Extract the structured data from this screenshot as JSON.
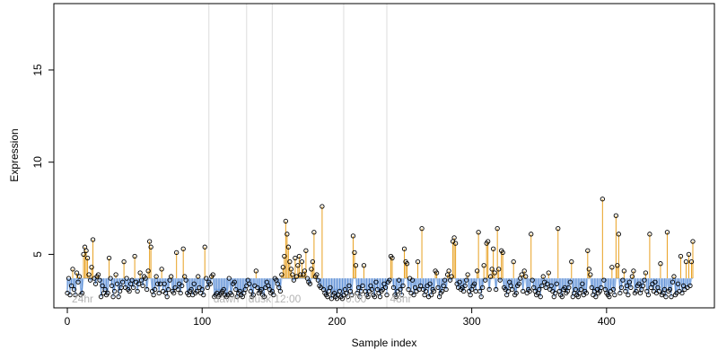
{
  "chart_data": {
    "type": "scatter",
    "xlabel": "Sample index",
    "ylabel": "Expression",
    "xlim": [
      -10,
      480
    ],
    "ylim": [
      2.1,
      18.6
    ],
    "x_ticks": [
      "0",
      "100",
      "200",
      "300",
      "400"
    ],
    "y_ticks": [
      "5",
      "10",
      "15"
    ],
    "baseline_level": 3.7,
    "dashed_level": 3.2,
    "floor_level": 2.6,
    "phase_lines": [
      105,
      133,
      152,
      205,
      237
    ],
    "phase_labels": [
      {
        "text": "24hr",
        "x": 2
      },
      {
        "text": "dawn",
        "x": 107
      },
      {
        "text": "dusk",
        "x": 133
      },
      {
        "text": "12:00",
        "x": 152
      },
      {
        "text": "0:00",
        "x": 205
      },
      {
        "text": "48hr",
        "x": 238
      }
    ],
    "colors": {
      "above_baseline": "#e8a020",
      "below_baseline": "#5b8ed6",
      "smooth_curve": "#a6c4ec",
      "points": "#000000",
      "phase_lines": "#dcdcdc",
      "phase_labels": "#b4b4b4"
    },
    "series": [
      {
        "values": [
          2.9,
          3.7,
          2.8,
          3.3,
          4.2,
          3.1,
          2.8,
          4.0,
          3.5,
          3.8,
          2.8,
          2.9,
          5.0,
          5.4,
          5.2,
          4.8,
          3.9,
          3.6,
          4.3,
          5.8,
          3.7,
          3.4,
          3.8,
          3.9,
          3.6,
          2.7,
          3.3,
          2.9,
          3.1,
          2.8,
          2.9,
          4.8,
          3.7,
          3.3,
          2.7,
          3.0,
          3.9,
          3.4,
          2.7,
          3.0,
          3.2,
          3.5,
          4.6,
          3.2,
          3.7,
          3.1,
          3.0,
          3.4,
          3.6,
          3.2,
          4.9,
          3.5,
          3.0,
          3.4,
          4.0,
          3.6,
          3.3,
          3.8,
          3.7,
          3.1,
          4.1,
          5.7,
          5.4,
          3.0,
          2.8,
          3.1,
          3.8,
          3.4,
          2.9,
          3.4,
          4.2,
          3.0,
          3.4,
          2.9,
          2.7,
          3.1,
          3.6,
          3.8,
          3.0,
          2.9,
          3.2,
          5.1,
          3.1,
          3.4,
          2.9,
          3.3,
          5.3,
          3.8,
          3.6,
          2.9,
          2.8,
          3.0,
          3.1,
          2.8,
          3.4,
          2.9,
          3.0,
          3.8,
          3.2,
          2.9,
          3.1,
          2.8,
          5.4,
          3.7,
          3.2,
          3.5,
          3.4,
          3.8,
          3.9,
          2.7,
          2.8,
          2.9,
          2.7,
          2.8,
          2.9,
          3.0,
          3.1,
          2.8,
          2.7,
          2.8,
          3.7,
          2.9,
          2.8,
          3.4,
          3.5,
          3.1,
          2.7,
          2.9,
          3.0,
          2.8,
          2.7,
          2.9,
          3.1,
          3.3,
          3.6,
          3.4,
          3.0,
          2.7,
          2.8,
          3.3,
          4.1,
          3.2,
          2.9,
          3.0,
          3.1,
          2.8,
          2.7,
          3.2,
          3.5,
          3.3,
          3.1,
          2.9,
          3.0,
          2.8,
          3.7,
          3.6,
          3.4,
          3.2,
          3.0,
          3.9,
          4.3,
          4.9,
          6.8,
          6.1,
          5.4,
          4.6,
          4.2,
          3.9,
          3.6,
          4.8,
          3.8,
          4.4,
          4.9,
          3.9,
          4.6,
          3.9,
          4.1,
          5.2,
          3.7,
          3.5,
          3.4,
          4.2,
          4.6,
          6.2,
          3.8,
          3.9,
          3.6,
          3.3,
          3.2,
          7.6,
          3.1,
          2.9,
          2.8,
          2.7,
          3.0,
          3.2,
          2.6,
          2.8,
          2.9,
          2.7,
          2.6,
          2.8,
          3.0,
          2.7,
          2.6,
          2.8,
          3.1,
          2.9,
          2.7,
          3.3,
          3.0,
          2.8,
          6.0,
          5.1,
          4.4,
          2.9,
          3.2,
          2.7,
          3.0,
          3.3,
          4.4,
          3.0,
          2.8,
          2.7,
          3.0,
          3.3,
          3.1,
          2.8,
          2.7,
          3.5,
          3.1,
          2.9,
          2.7,
          3.0,
          3.1,
          3.4,
          3.2,
          2.8,
          3.5,
          3.6,
          4.9,
          4.8,
          3.2,
          2.8,
          2.7,
          3.0,
          3.6,
          3.1,
          2.8,
          3.3,
          5.3,
          4.6,
          4.5,
          3.1,
          3.7,
          2.9,
          3.6,
          2.8,
          3.2,
          3.0,
          4.6,
          3.1,
          3.3,
          6.4,
          3.1,
          2.8,
          3.0,
          3.3,
          2.7,
          3.4,
          2.8,
          3.1,
          3.0,
          4.1,
          4.0,
          3.2,
          2.7,
          2.9,
          3.0,
          3.3,
          3.6,
          3.1,
          3.9,
          4.1,
          3.6,
          3.8,
          5.7,
          5.9,
          5.6,
          3.4,
          3.2,
          3.5,
          3.1,
          3.2,
          3.0,
          3.3,
          3.6,
          3.9,
          3.0,
          2.8,
          3.1,
          3.3,
          3.4,
          3.0,
          4.1,
          6.2,
          3.0,
          2.7,
          3.2,
          4.4,
          3.6,
          5.6,
          5.7,
          3.1,
          3.8,
          4.2,
          5.3,
          4.0,
          3.1,
          6.4,
          4.2,
          3.6,
          5.2,
          5.1,
          3.2,
          3.1,
          2.8,
          3.0,
          3.5,
          3.3,
          3.1,
          4.6,
          2.8,
          2.9,
          3.3,
          3.4,
          3.7,
          3.9,
          3.0,
          4.1,
          3.8,
          2.9,
          3.1,
          3.0,
          6.1,
          3.6,
          3.2,
          3.0,
          2.8,
          2.9,
          3.1,
          2.7,
          3.3,
          3.8,
          3.5,
          3.2,
          3.4,
          4.0,
          3.1,
          3.3,
          3.0,
          2.7,
          2.9,
          3.4,
          6.4,
          3.0,
          2.8,
          2.7,
          3.1,
          3.2,
          2.9,
          3.0,
          3.2,
          3.5,
          4.6,
          2.7,
          2.9,
          3.1,
          2.8,
          2.7,
          2.9,
          3.1,
          3.4,
          2.8,
          3.0,
          2.9,
          5.2,
          4.2,
          3.9,
          3.2,
          2.8,
          3.0,
          2.7,
          3.1,
          2.9,
          3.0,
          3.2,
          8.0,
          3.6,
          3.1,
          2.9,
          2.8,
          2.7,
          3.0,
          4.3,
          3.1,
          2.8,
          7.1,
          4.4,
          6.1,
          2.9,
          3.2,
          3.6,
          4.1,
          3.0,
          3.3,
          2.8,
          3.5,
          3.2,
          3.8,
          4.1,
          2.9,
          3.0,
          3.3,
          3.4,
          2.9,
          3.1,
          3.3,
          3.6,
          4.0,
          3.0,
          2.8,
          6.1,
          3.2,
          3.4,
          3.0,
          3.5,
          2.9,
          3.2,
          3.0,
          4.5,
          2.8,
          2.9,
          3.1,
          2.7,
          6.2,
          3.0,
          3.1,
          2.7,
          3.5,
          3.8,
          2.8,
          2.9,
          3.4,
          3.0,
          4.9,
          2.9,
          3.3,
          3.1,
          4.6,
          3.2,
          5.0,
          3.3,
          4.6,
          5.7
        ]
      }
    ]
  }
}
